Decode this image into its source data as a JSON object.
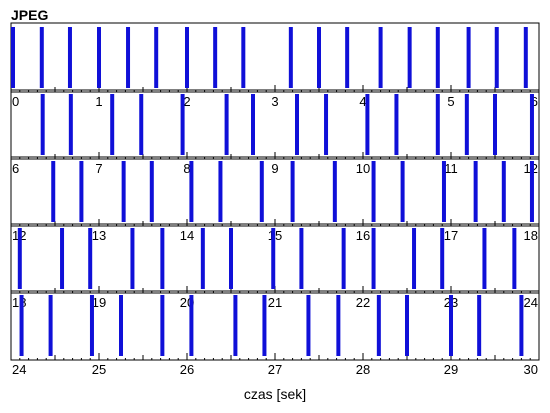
{
  "chart_data": {
    "type": "bar",
    "title": "JPEG",
    "xlabel": "czas [sek]",
    "rows": [
      {
        "xlim": [
          0,
          6
        ],
        "bars": [
          0.0,
          0.35,
          0.67,
          1.0,
          1.33,
          1.65,
          2.0,
          2.32,
          2.64,
          3.18,
          3.5,
          3.82,
          4.2,
          4.53,
          4.85,
          5.2,
          5.52,
          5.85
        ]
      },
      {
        "xlim": [
          6,
          12
        ],
        "bars": [
          6.36,
          6.68,
          7.15,
          7.48,
          7.95,
          8.45,
          8.75,
          9.25,
          9.58,
          10.05,
          10.38,
          10.85,
          11.18,
          11.5,
          11.92
        ]
      },
      {
        "xlim": [
          12,
          18
        ],
        "bars": [
          12.48,
          12.8,
          13.28,
          13.6,
          14.05,
          14.38,
          14.85,
          15.2,
          15.68,
          16.12,
          16.45,
          16.92,
          17.28,
          17.6,
          17.92
        ]
      },
      {
        "xlim": [
          18,
          24
        ],
        "bars": [
          18.1,
          18.58,
          18.9,
          19.38,
          19.72,
          20.18,
          20.5,
          20.98,
          21.3,
          21.78,
          22.12,
          22.58,
          22.9,
          23.38,
          23.72
        ]
      },
      {
        "xlim": [
          24,
          30
        ],
        "bars": [
          24.12,
          24.45,
          24.92,
          25.25,
          25.72,
          26.05,
          26.55,
          26.88,
          27.38,
          27.72,
          28.18,
          28.5,
          29.0,
          29.32,
          29.8
        ]
      }
    ],
    "row_tick_labels": [
      [
        "0",
        "1",
        "2",
        "3",
        "4",
        "5",
        "6"
      ],
      [
        "6",
        "7",
        "8",
        "9",
        "10",
        "11",
        "12"
      ],
      [
        "12",
        "13",
        "14",
        "15",
        "16",
        "17",
        "18"
      ],
      [
        "18",
        "19",
        "20",
        "21",
        "22",
        "23",
        "24"
      ],
      [
        "24",
        "25",
        "26",
        "27",
        "28",
        "29",
        "30"
      ]
    ],
    "minor_ticks_per_unit": 10,
    "bar_color": "#1010d8"
  }
}
